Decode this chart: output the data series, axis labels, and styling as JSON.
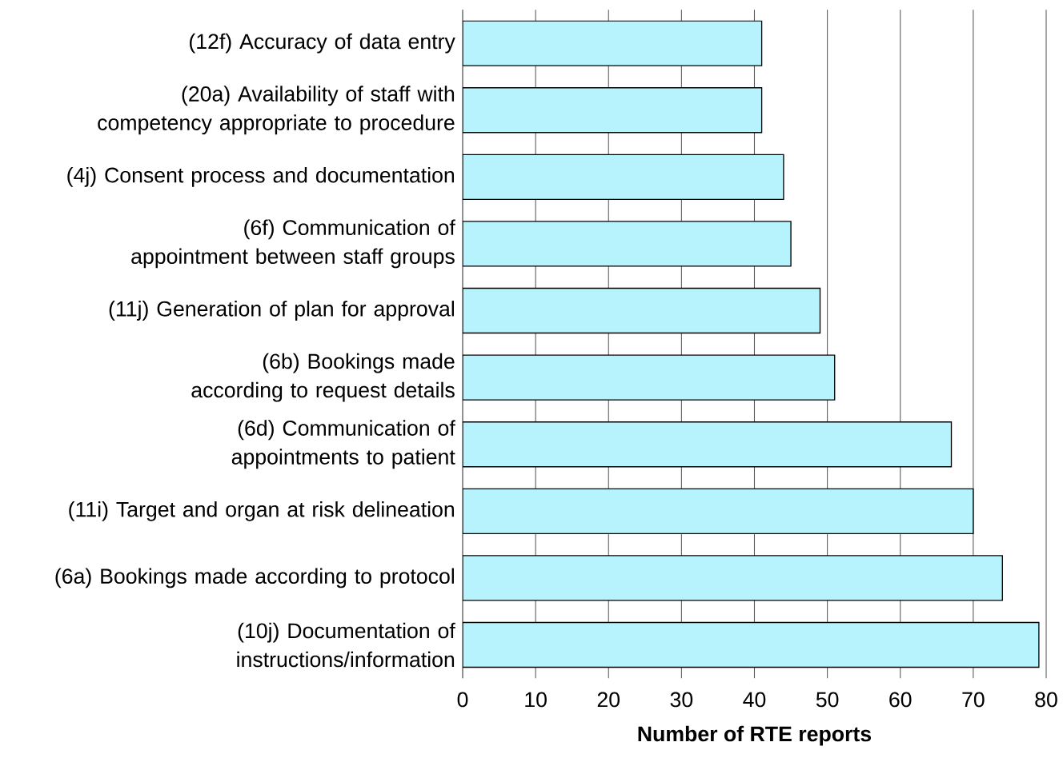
{
  "chart_data": {
    "type": "bar",
    "orientation": "horizontal",
    "xlabel": "Number of RTE reports",
    "categories": [
      "(12f) Accuracy of data entry",
      "(20a) Availability of staff with competency appropriate to procedure",
      "(4j) Consent process and documentation",
      "(6f) Communication of appointment between staff groups",
      "(11j) Generation of plan for approval",
      "(6b) Bookings made according to request details",
      "(6d) Communication of appointments to patient",
      "(11i) Target and organ at risk delineation",
      "(6a) Bookings made according to protocol",
      "(10j) Documentation of instructions/information"
    ],
    "values": [
      41,
      41,
      44,
      45,
      49,
      51,
      67,
      70,
      74,
      79
    ],
    "color": "#b7f3fd",
    "xlim": [
      0,
      80
    ],
    "xticks": [
      0,
      10,
      20,
      30,
      40,
      50,
      60,
      70,
      80
    ],
    "grid": "x"
  }
}
